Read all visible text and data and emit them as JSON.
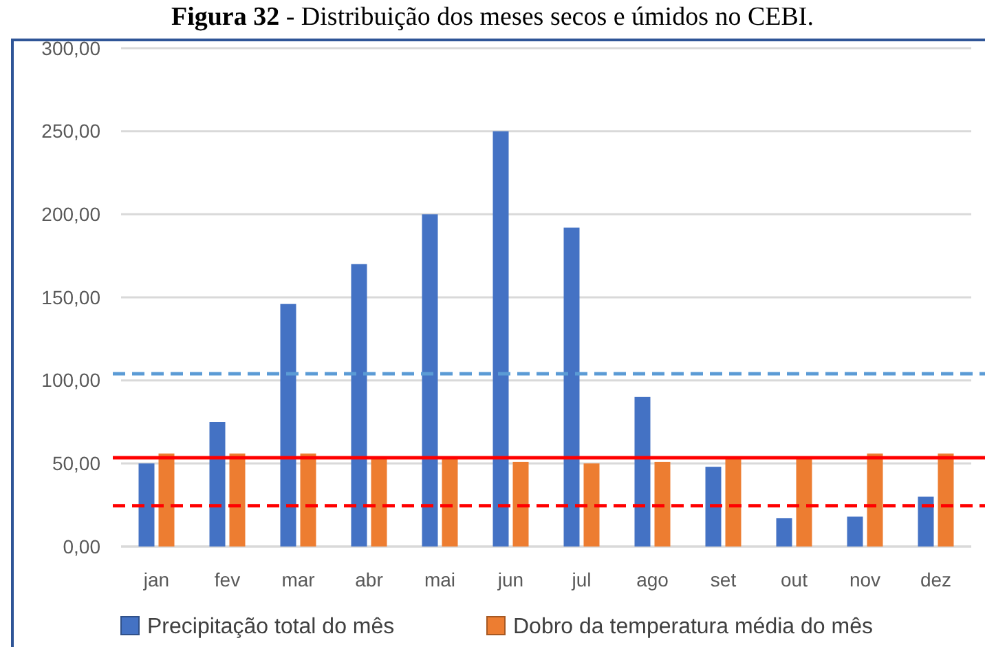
{
  "chart_data": {
    "type": "bar",
    "title": "Figura 32 - Distribuição dos meses secos e úmidos no CEBI.",
    "categories": [
      "jan",
      "fev",
      "mar",
      "abr",
      "mai",
      "jun",
      "jul",
      "ago",
      "set",
      "out",
      "nov",
      "dez"
    ],
    "series": [
      {
        "name": "Precipitação total do mês",
        "color": "#4472c4",
        "values": [
          50,
          75,
          146,
          170,
          200,
          250,
          192,
          90,
          48,
          17,
          18,
          30
        ]
      },
      {
        "name": "Dobro da temperatura média do mês",
        "color": "#ed7d31",
        "values": [
          56,
          56,
          56,
          53,
          53,
          51,
          50,
          51,
          53,
          53,
          56,
          56
        ]
      }
    ],
    "ylim": [
      0,
      300
    ],
    "yticks": [
      {
        "value": 0,
        "label": "0,00"
      },
      {
        "value": 50,
        "label": "50,00"
      },
      {
        "value": 100,
        "label": "100,00"
      },
      {
        "value": 150,
        "label": "150,00"
      },
      {
        "value": 200,
        "label": "200,00"
      },
      {
        "value": 250,
        "label": "250,00"
      },
      {
        "value": 300,
        "label": "300,00"
      }
    ],
    "ref_lines": [
      {
        "axis": "y",
        "value": 104,
        "color": "#5b9bd5",
        "line_style": "dashed"
      },
      {
        "axis": "y",
        "value": 53.5,
        "color": "#ff0000",
        "line_style": "solid"
      },
      {
        "axis": "y",
        "value": 24.5,
        "color": "#ff0000",
        "line_style": "dashed"
      }
    ],
    "grid": "y",
    "legend": "bottom"
  }
}
